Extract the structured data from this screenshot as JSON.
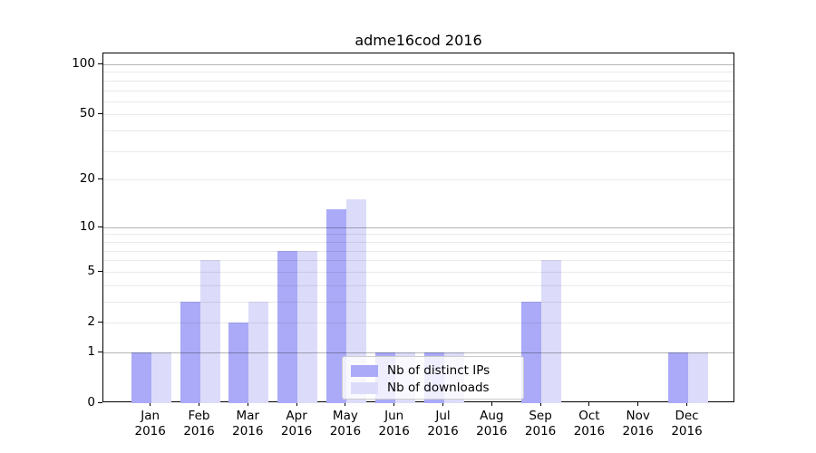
{
  "title": "adme16cod 2016",
  "chart_data": {
    "type": "bar",
    "title": "adme16cod 2016",
    "year_label": "2016",
    "categories": [
      "Jan",
      "Feb",
      "Mar",
      "Apr",
      "May",
      "Jun",
      "Jul",
      "Aug",
      "Sep",
      "Oct",
      "Nov",
      "Dec"
    ],
    "series": [
      {
        "name": "Nb of distinct IPs",
        "color": "#aaaaf8",
        "values": [
          1,
          3,
          2,
          7,
          13,
          1,
          1,
          0,
          3,
          0,
          0,
          1
        ]
      },
      {
        "name": "Nb of downloads",
        "color": "#dcdcfa",
        "values": [
          1,
          6,
          3,
          7,
          15,
          1,
          1,
          0,
          6,
          0,
          0,
          1
        ]
      }
    ],
    "yscale": "log1p",
    "ylim": [
      0,
      116
    ],
    "yticks": [
      0,
      1,
      2,
      5,
      10,
      20,
      50,
      100
    ],
    "grid": true,
    "major_gridlines": [
      1,
      10,
      100
    ],
    "minor_gridlines": [
      2,
      3,
      4,
      5,
      6,
      7,
      8,
      9,
      20,
      30,
      40,
      50,
      60,
      70,
      80,
      90
    ],
    "legend": {
      "position": "lower-center",
      "entries": [
        "Nb of distinct IPs",
        "Nb of downloads"
      ]
    }
  },
  "colors": {
    "bar_distinct_ips": "#aaaaf8",
    "bar_downloads": "#dcdcfa",
    "major_grid": "#b3b3b3",
    "minor_grid": "#e9e9e9",
    "axis": "#000000",
    "legend_border": "#cccccc"
  }
}
